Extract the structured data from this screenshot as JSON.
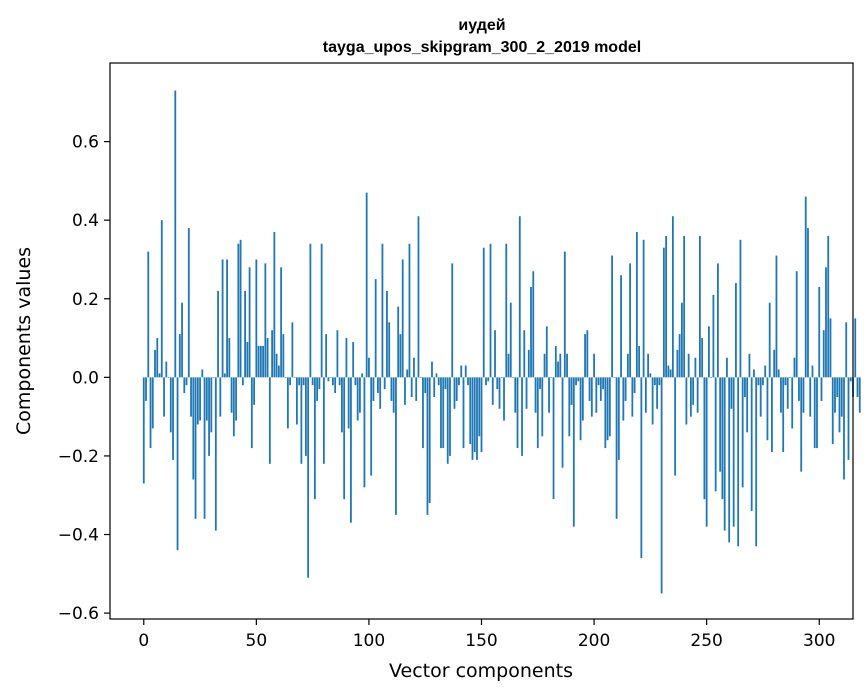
{
  "chart_data": {
    "type": "bar",
    "title_line1": "иудей",
    "title_line2": "tayga_upos_skipgram_300_2_2019 model",
    "xlabel": "Vector components",
    "ylabel": "Components values",
    "xlim": [
      -15,
      315
    ],
    "ylim": [
      -0.615,
      0.8
    ],
    "x_ticks": [
      0,
      50,
      100,
      150,
      200,
      250,
      300
    ],
    "x_tick_labels": [
      "0",
      "50",
      "100",
      "150",
      "200",
      "250",
      "300"
    ],
    "y_ticks": [
      -0.6,
      -0.4,
      -0.2,
      0.0,
      0.2,
      0.4,
      0.6
    ],
    "y_tick_labels": [
      "−0.6",
      "−0.4",
      "−0.2",
      "0.0",
      "0.2",
      "0.4",
      "0.6"
    ],
    "bar_color": "#1f77b4",
    "values": [
      -0.27,
      -0.06,
      0.32,
      -0.18,
      -0.13,
      0.07,
      0.1,
      0.01,
      0.4,
      -0.1,
      0.04,
      0.0,
      -0.14,
      -0.21,
      0.73,
      -0.44,
      0.11,
      0.19,
      -0.04,
      -0.02,
      0.38,
      -0.1,
      -0.26,
      -0.36,
      -0.12,
      -0.11,
      0.02,
      -0.36,
      -0.11,
      -0.2,
      -0.14,
      0.0,
      -0.39,
      0.22,
      -0.1,
      0.3,
      0.01,
      0.3,
      0.1,
      -0.09,
      -0.15,
      -0.11,
      0.34,
      0.35,
      -0.02,
      0.22,
      0.09,
      0.28,
      -0.18,
      -0.07,
      0.3,
      0.08,
      0.08,
      0.08,
      0.29,
      0.1,
      -0.22,
      0.12,
      0.37,
      0.06,
      0.03,
      0.28,
      0.11,
      0.0,
      -0.13,
      -0.02,
      0.14,
      0.0,
      -0.12,
      -0.02,
      -0.22,
      -0.02,
      -0.2,
      -0.51,
      0.34,
      -0.02,
      -0.31,
      -0.06,
      -0.03,
      0.34,
      -0.22,
      0.11,
      -0.01,
      0.0,
      -0.02,
      -0.04,
      0.12,
      -0.02,
      -0.14,
      -0.31,
      0.1,
      -0.13,
      -0.37,
      0.09,
      -0.02,
      -0.11,
      -0.09,
      0.01,
      -0.28,
      0.47,
      0.05,
      -0.25,
      -0.06,
      0.25,
      -0.04,
      -0.08,
      0.34,
      -0.03,
      0.22,
      0.14,
      -0.06,
      -0.09,
      -0.35,
      0.18,
      0.11,
      0.3,
      -0.07,
      0.02,
      0.34,
      -0.05,
      0.05,
      -0.06,
      0.41,
      0.0,
      -0.18,
      -0.04,
      -0.35,
      -0.32,
      0.04,
      -0.05,
      0.01,
      -0.02,
      -0.18,
      -0.18,
      -0.03,
      -0.22,
      -0.2,
      0.29,
      -0.08,
      -0.06,
      -0.02,
      0.03,
      -0.18,
      0.03,
      -0.02,
      -0.17,
      -0.21,
      -0.19,
      -0.21,
      -0.15,
      -0.19,
      0.33,
      -0.02,
      -0.01,
      0.34,
      -0.07,
      0.12,
      -0.03,
      -0.08,
      0.0,
      -0.11,
      0.34,
      0.06,
      0.19,
      0.0,
      -0.09,
      -0.18,
      0.41,
      -0.2,
      0.12,
      -0.08,
      0.07,
      0.23,
      0.27,
      -0.09,
      -0.18,
      -0.03,
      -0.15,
      0.06,
      0.13,
      -0.09,
      0.0,
      -0.31,
      0.08,
      0.04,
      0.06,
      -0.23,
      0.32,
      0.06,
      -0.15,
      -0.07,
      -0.38,
      -0.02,
      -0.01,
      -0.16,
      -0.11,
      0.11,
      0.12,
      -0.06,
      -0.1,
      0.06,
      -0.09,
      -0.02,
      -0.06,
      -0.03,
      -0.18,
      -0.16,
      -0.15,
      0.31,
      0.0,
      -0.36,
      -0.21,
      0.26,
      -0.11,
      -0.06,
      0.06,
      0.29,
      -0.1,
      -0.04,
      0.37,
      0.08,
      -0.46,
      0.35,
      -0.09,
      0.06,
      0.01,
      -0.12,
      -0.02,
      -0.08,
      -0.02,
      -0.55,
      0.33,
      0.36,
      0.03,
      0.02,
      0.41,
      -0.25,
      0.07,
      0.11,
      0.19,
      0.36,
      -0.12,
      0.06,
      -0.1,
      -0.07,
      0.05,
      -0.09,
      0.36,
      0.1,
      -0.31,
      -0.38,
      0.13,
      0.0,
      0.21,
      -0.29,
      0.29,
      -0.24,
      -0.31,
      -0.39,
      0.05,
      -0.42,
      -0.08,
      -0.38,
      0.24,
      -0.43,
      0.35,
      -0.28,
      -0.05,
      -0.14,
      0.06,
      -0.34,
      0.02,
      -0.43,
      -0.02,
      -0.1,
      -0.02,
      0.03,
      -0.16,
      0.19,
      -0.19,
      0.07,
      0.31,
      0.02,
      -0.09,
      -0.19,
      -0.02,
      -0.08,
      0.0,
      -0.13,
      0.05,
      0.27,
      -0.06,
      -0.24,
      -0.09,
      0.46,
      0.38,
      -0.1,
      0.03,
      -0.18,
      -0.18,
      0.23,
      -0.06,
      0.12,
      0.28,
      0.36,
      0.15,
      -0.17,
      -0.09,
      -0.05,
      -0.14,
      -0.1,
      -0.26,
      0.14,
      -0.21,
      -0.01,
      -0.05,
      0.15,
      -0.05,
      -0.09
    ]
  }
}
